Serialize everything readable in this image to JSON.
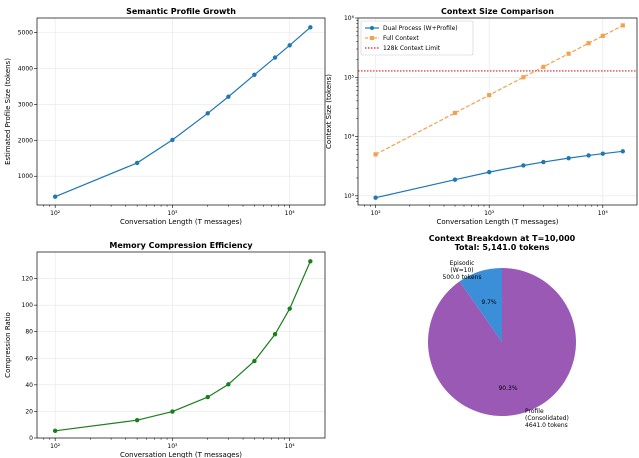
{
  "chart_data": [
    {
      "id": "profile",
      "type": "line",
      "title": "Semantic Profile Growth",
      "xlabel": "Conversation Length (T messages)",
      "ylabel": "Estimated Profile Size (tokens)",
      "xscale": "log",
      "xlim": [
        70,
        20000
      ],
      "ylim": [
        200,
        5400
      ],
      "grid": true,
      "x_ticks": [
        100,
        1000,
        10000
      ],
      "x_tick_labels": [
        "10²",
        "10³",
        "10⁴"
      ],
      "y_ticks": [
        1000,
        2000,
        3000,
        4000,
        5000
      ],
      "y_tick_labels": [
        "1000",
        "2000",
        "3000",
        "4000",
        "5000"
      ],
      "series": [
        {
          "color": "#1f77b4",
          "marker": "circle",
          "linestyle": "solid",
          "x": [
            100,
            500,
            1000,
            2000,
            3000,
            5000,
            7500,
            10000,
            15000
          ],
          "y": [
            430,
            1370,
            2010,
            2750,
            3210,
            3820,
            4300,
            4641,
            5140
          ]
        }
      ]
    },
    {
      "id": "context",
      "type": "line",
      "title": "Context Size Comparison",
      "xlabel": "Conversation Length (T messages)",
      "ylabel": "Context Size (tokens)",
      "xscale": "log",
      "yscale": "log",
      "xlim": [
        70,
        20000
      ],
      "ylim": [
        700,
        1000000
      ],
      "grid": true,
      "legend": "top-left",
      "x_ticks": [
        100,
        1000,
        10000
      ],
      "x_tick_labels": [
        "10²",
        "10³",
        "10⁴"
      ],
      "y_ticks": [
        1000,
        10000,
        100000,
        1000000
      ],
      "y_tick_labels": [
        "10³",
        "10⁴",
        "10⁵",
        "10⁶"
      ],
      "series": [
        {
          "name": "Dual Process (W+Profile)",
          "color": "#1f77b4",
          "marker": "circle",
          "linestyle": "solid",
          "x": [
            100,
            500,
            1000,
            2000,
            3000,
            5000,
            7500,
            10000,
            15000
          ],
          "y": [
            930,
            1870,
            2510,
            3250,
            3710,
            4320,
            4800,
            5141,
            5640
          ]
        },
        {
          "name": "Full Context",
          "color": "#f5a04f",
          "marker": "square",
          "linestyle": "dashed",
          "x": [
            100,
            500,
            1000,
            2000,
            3000,
            5000,
            7500,
            10000,
            15000
          ],
          "y": [
            5000,
            25000,
            50000,
            100000,
            150000,
            250000,
            375000,
            500000,
            750000
          ]
        },
        {
          "name": "128k Context Limit",
          "color": "#e31a1c",
          "linestyle": "dotted",
          "hline": 128000
        }
      ]
    },
    {
      "id": "compression",
      "type": "line",
      "title": "Memory Compression Efficiency",
      "xlabel": "Conversation Length (T messages)",
      "ylabel": "Compression Ratio",
      "xscale": "log",
      "xlim": [
        70,
        20000
      ],
      "ylim": [
        0,
        140
      ],
      "grid": true,
      "x_ticks": [
        100,
        1000,
        10000
      ],
      "x_tick_labels": [
        "10²",
        "10³",
        "10⁴"
      ],
      "y_ticks": [
        0,
        20,
        40,
        60,
        80,
        100,
        120
      ],
      "y_tick_labels": [
        "0",
        "20",
        "40",
        "60",
        "80",
        "100",
        "120"
      ],
      "series": [
        {
          "color": "#1a7f1a",
          "marker": "circle",
          "linestyle": "solid",
          "x": [
            100,
            500,
            1000,
            2000,
            3000,
            5000,
            7500,
            10000,
            15000
          ],
          "y": [
            5.4,
            13.4,
            19.9,
            30.8,
            40.4,
            57.9,
            78.1,
            97.3,
            133.0
          ]
        }
      ]
    },
    {
      "id": "breakdown",
      "type": "pie",
      "title": "Context Breakdown at T=10,000",
      "subtitle": "Total: 5,141.0 tokens",
      "slices": [
        {
          "label_lines": [
            "Episodic",
            "(W=10)",
            "500.0 tokens"
          ],
          "value": 500.0,
          "pct_label": "9.7%",
          "color": "#3b8fd9"
        },
        {
          "label_lines": [
            "Profile",
            "(Consolidated)",
            "4641.0 tokens"
          ],
          "value": 4641.0,
          "pct_label": "90.3%",
          "color": "#9b59b6"
        }
      ]
    }
  ]
}
